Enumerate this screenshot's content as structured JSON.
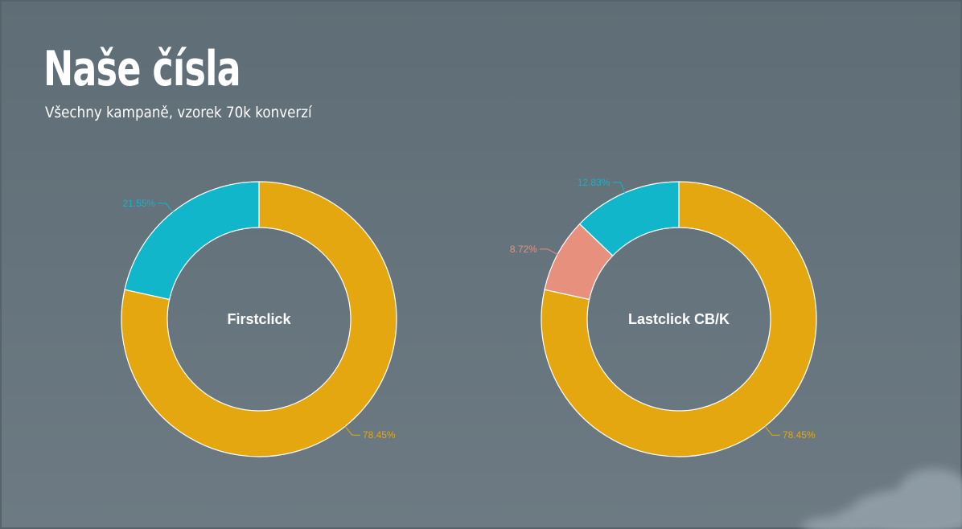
{
  "slide": {
    "title": "Naše čísla",
    "subtitle": "Všechny kampaně, vzorek 70k konverzí"
  },
  "colors": {
    "background": "#63717a",
    "gold": "#e5a70f",
    "teal": "#12b6cb",
    "salmon": "#e8907e",
    "white": "#ffffff"
  },
  "chart_data": [
    {
      "type": "pie",
      "style": "donut",
      "center_label": "Firstclick",
      "start": "top",
      "direction": "clockwise",
      "slices": [
        {
          "value": 78.45,
          "label": "78.45%",
          "color": "#e5a70f"
        },
        {
          "value": 21.55,
          "label": "21.55%",
          "color": "#12b6cb"
        }
      ]
    },
    {
      "type": "pie",
      "style": "donut",
      "center_label": "Lastclick CB/K",
      "start": "top",
      "direction": "clockwise",
      "slices": [
        {
          "value": 78.45,
          "label": "78.45%",
          "color": "#e5a70f"
        },
        {
          "value": 8.72,
          "label": "8.72%",
          "color": "#e8907e"
        },
        {
          "value": 12.83,
          "label": "12.83%",
          "color": "#12b6cb"
        }
      ]
    }
  ]
}
